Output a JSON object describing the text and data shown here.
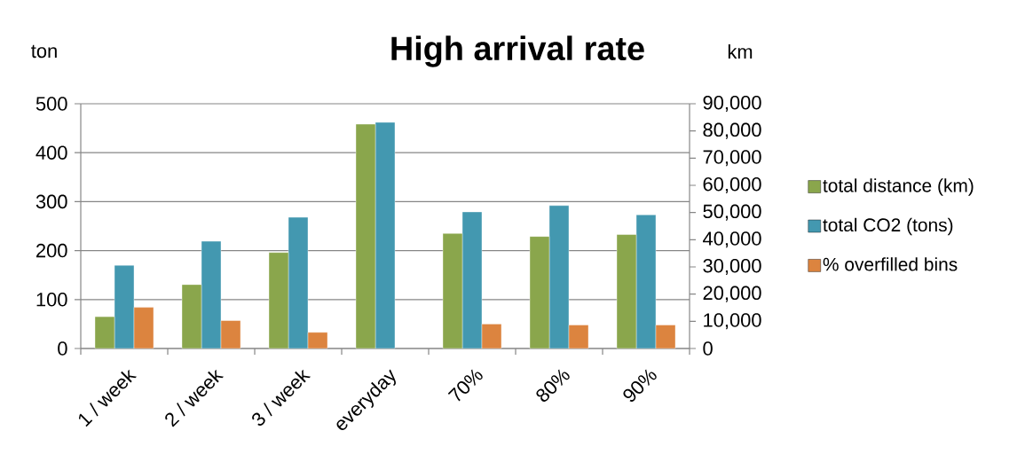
{
  "chart_data": {
    "type": "bar",
    "title": "High arrival rate",
    "ylabel": "ton",
    "y2label": "km",
    "categories": [
      "1 / week",
      "2 / week",
      "3 / week",
      "everyday",
      "70%",
      "80%",
      "90%"
    ],
    "series": [
      {
        "name": "total distance (km)",
        "color": "#8aa64c",
        "axis": "y2",
        "values": [
          11700,
          23500,
          35300,
          82500,
          42300,
          41200,
          41900
        ]
      },
      {
        "name": "total CO2 (tons)",
        "color": "#4398b0",
        "values": [
          170,
          219,
          268,
          462,
          279,
          292,
          273
        ]
      },
      {
        "name": "% overfilled bins",
        "color": "#dc843f",
        "values": [
          84,
          57,
          33,
          null,
          50,
          48,
          48
        ]
      }
    ],
    "ylim": [
      0,
      500
    ],
    "yticks": [
      0,
      100,
      200,
      300,
      400,
      500
    ],
    "y2lim": [
      0,
      90000
    ],
    "y2ticks": [
      0,
      {
        "value": 10000,
        "label": "10,000"
      },
      {
        "value": 20000,
        "label": "20,000"
      },
      {
        "value": 30000,
        "label": "30,000"
      },
      {
        "value": 40000,
        "label": "40,000"
      },
      {
        "value": 50000,
        "label": "50,000"
      },
      {
        "value": 60000,
        "label": "60,000"
      },
      {
        "value": 70000,
        "label": "70,000"
      },
      {
        "value": 80000,
        "label": "80,000"
      },
      {
        "value": 90000,
        "label": "90,000"
      }
    ],
    "grid": "y",
    "legend": "right"
  }
}
